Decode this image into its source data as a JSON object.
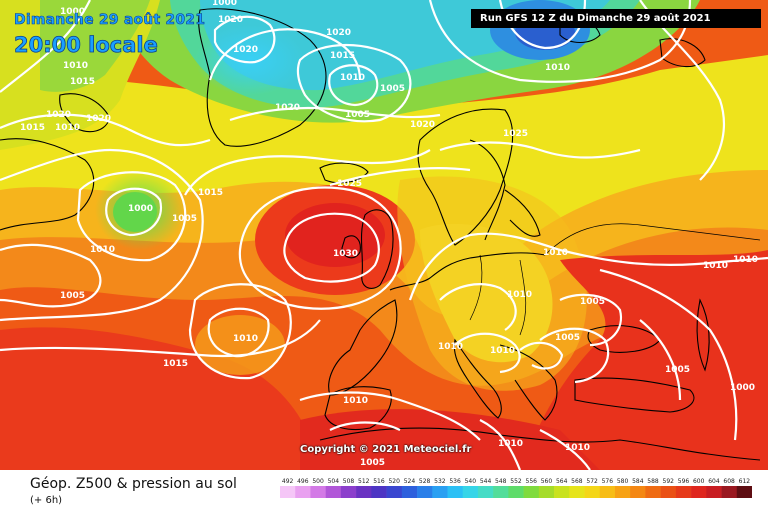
{
  "header": {
    "date_text": "Dimanche 29 août 2021",
    "time_text": "20:00 locale",
    "run_text": "Run GFS 12 Z du Dimanche 29 août 2021"
  },
  "map": {
    "copyright": "Copyright © 2021 Meteociel.fr",
    "field_colors": {
      "low_geopotential": "#17c8f0",
      "mid_geopotential": "#f2e31a",
      "high_geopotential": "#e8231e",
      "isobar_color": "#ffffff",
      "coastline_color": "#000000"
    },
    "isobar_labels": [
      "1000",
      "1020",
      "1020",
      "1015",
      "1020",
      "1010",
      "1005",
      "1010",
      "1005",
      "1000",
      "1010",
      "1015",
      "1020",
      "1020",
      "1020",
      "1010",
      "1015",
      "1020",
      "1025",
      "1000",
      "1005",
      "1015",
      "1025",
      "1010",
      "1030",
      "1010",
      "1005",
      "1010",
      "1010",
      "1005",
      "1010",
      "1010",
      "1005",
      "1010",
      "1015",
      "1010",
      "1005",
      "1000",
      "1010",
      "1010",
      "1010",
      "1005"
    ]
  },
  "footer": {
    "title": "Géop. Z500 & pression au sol",
    "subtitle": "(+ 6h)"
  },
  "legend": {
    "ticks": [
      "492",
      "496",
      "500",
      "504",
      "508",
      "512",
      "516",
      "520",
      "524",
      "528",
      "532",
      "536",
      "540",
      "544",
      "548",
      "552",
      "556",
      "560",
      "564",
      "568",
      "572",
      "576",
      "580",
      "584",
      "588",
      "592",
      "596",
      "600",
      "604",
      "608",
      "612"
    ],
    "colors": [
      "#f5c6f7",
      "#e9a1f0",
      "#d37ae6",
      "#b157d8",
      "#8c3fcc",
      "#6a32c2",
      "#4d35c4",
      "#3a46d0",
      "#2d60dd",
      "#2a7fe9",
      "#2aa0f2",
      "#2bc0f5",
      "#36d5e8",
      "#45dcc6",
      "#52dd9a",
      "#5fdc6a",
      "#7fdb3e",
      "#a5dc2a",
      "#c9e21f",
      "#e6e41b",
      "#f4d618",
      "#f7bd16",
      "#f7a214",
      "#f48712",
      "#ef6b12",
      "#ea5115",
      "#e63a1a",
      "#df261e",
      "#c81d22",
      "#9a1820",
      "#5e0d12"
    ]
  }
}
